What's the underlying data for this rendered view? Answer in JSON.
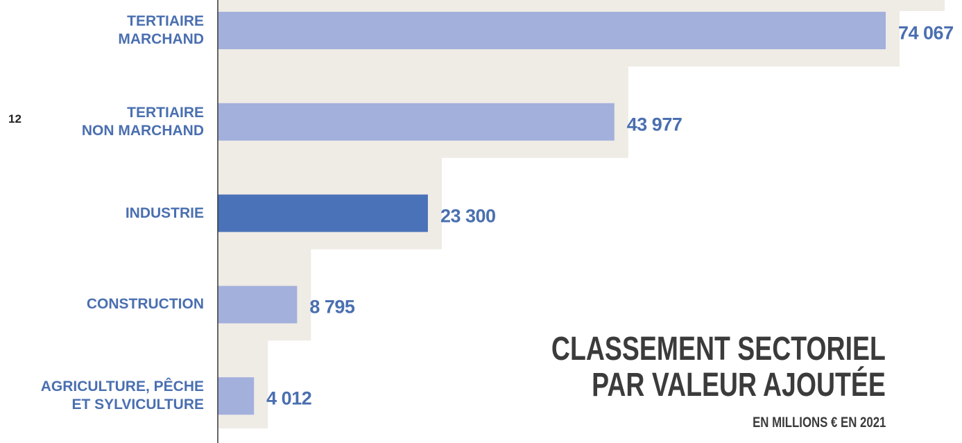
{
  "chart_data": {
    "type": "barh",
    "title": "CLASSEMENT SECTORIEL\nPAR VALEUR AJOUTÉE",
    "subtitle": "EN MILLIONS € EN 2021",
    "page_number": "12",
    "categories": [
      "TERTIAIRE\nMARCHAND",
      "TERTIAIRE\nNON MARCHAND",
      "INDUSTRIE",
      "CONSTRUCTION",
      "AGRICULTURE, PÊCHE\nET SYLVICULTURE"
    ],
    "values": [
      74067,
      43977,
      23300,
      8795,
      4012
    ],
    "value_labels": [
      "74 067",
      "43 977",
      "23 300",
      "8 795",
      "4 012"
    ],
    "colors": [
      "#a3b0dc",
      "#a3b0dc",
      "#4a72b8",
      "#a3b0dc",
      "#a3b0dc"
    ],
    "xlim": [
      0,
      74067
    ]
  }
}
